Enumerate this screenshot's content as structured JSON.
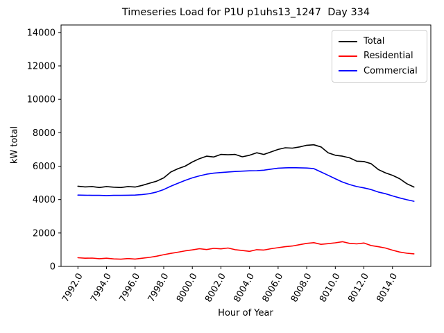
{
  "chart_data": {
    "type": "line",
    "title": "Timeseries Load for P1U p1uhs13_1247  Day 334",
    "xlabel": "Hour of Year",
    "ylabel": "kW total",
    "xlim": [
      7990.82,
      8016.68
    ],
    "ylim": [
      0,
      14450
    ],
    "grid": false,
    "legend_position": "upper right",
    "xticks": [
      7992,
      7994,
      7996,
      7998,
      8000,
      8002,
      8004,
      8006,
      8008,
      8010,
      8012,
      8014
    ],
    "xtick_labels": [
      "7992.0",
      "7994.0",
      "7996.0",
      "7998.0",
      "8000.0",
      "8002.0",
      "8004.0",
      "8006.0",
      "8008.0",
      "8010.0",
      "8012.0",
      "8014.0"
    ],
    "yticks": [
      0,
      2000,
      4000,
      6000,
      8000,
      10000,
      12000,
      14000
    ],
    "ytick_labels": [
      "0",
      "2000",
      "4000",
      "6000",
      "8000",
      "10000",
      "12000",
      "14000"
    ],
    "x": [
      7992,
      7992.5,
      7993,
      7993.5,
      7994,
      7994.5,
      7995,
      7995.5,
      7996,
      7996.5,
      7997,
      7997.5,
      7998,
      7998.5,
      7999,
      7999.5,
      8000,
      8000.5,
      8001,
      8001.5,
      8002,
      8002.5,
      8003,
      8003.5,
      8004,
      8004.5,
      8005,
      8005.5,
      8006,
      8006.5,
      8007,
      8007.5,
      8008,
      8008.5,
      8009,
      8009.5,
      8010,
      8010.5,
      8011,
      8011.5,
      8012,
      8012.5,
      8013,
      8013.5,
      8014,
      8014.5,
      8015,
      8015.5
    ],
    "series": [
      {
        "name": "Total",
        "color": "#000000",
        "values": [
          4800,
          4760,
          4780,
          4720,
          4780,
          4740,
          4720,
          4780,
          4750,
          4850,
          4980,
          5100,
          5300,
          5650,
          5850,
          6000,
          6250,
          6450,
          6600,
          6550,
          6700,
          6680,
          6700,
          6560,
          6650,
          6800,
          6700,
          6850,
          7000,
          7100,
          7080,
          7150,
          7250,
          7280,
          7150,
          6800,
          6650,
          6600,
          6500,
          6300,
          6280,
          6150,
          5800,
          5600,
          5450,
          5250,
          4950,
          4750
        ]
      },
      {
        "name": "Residential",
        "color": "#ff0000",
        "values": [
          520,
          490,
          500,
          460,
          490,
          450,
          430,
          470,
          440,
          490,
          540,
          610,
          700,
          780,
          850,
          930,
          990,
          1060,
          1010,
          1080,
          1050,
          1100,
          1000,
          950,
          900,
          1000,
          980,
          1060,
          1120,
          1180,
          1220,
          1300,
          1380,
          1420,
          1320,
          1360,
          1410,
          1480,
          1380,
          1350,
          1400,
          1250,
          1180,
          1100,
          970,
          860,
          790,
          750
        ]
      },
      {
        "name": "Commercial",
        "color": "#0000ff",
        "values": [
          4270,
          4260,
          4250,
          4250,
          4240,
          4250,
          4250,
          4260,
          4270,
          4300,
          4350,
          4450,
          4600,
          4800,
          4980,
          5150,
          5300,
          5420,
          5520,
          5580,
          5620,
          5650,
          5680,
          5700,
          5720,
          5730,
          5760,
          5820,
          5880,
          5900,
          5910,
          5900,
          5890,
          5850,
          5650,
          5450,
          5250,
          5050,
          4900,
          4780,
          4700,
          4600,
          4450,
          4350,
          4220,
          4100,
          3990,
          3900
        ]
      }
    ]
  }
}
